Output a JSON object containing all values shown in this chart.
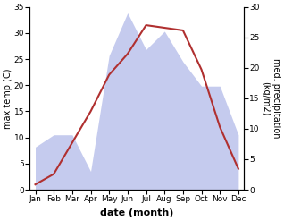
{
  "months": [
    "Jan",
    "Feb",
    "Mar",
    "Apr",
    "May",
    "Jun",
    "Jul",
    "Aug",
    "Sep",
    "Oct",
    "Nov",
    "Dec"
  ],
  "temp": [
    1,
    3,
    9,
    15,
    22,
    26,
    31.5,
    31,
    30.5,
    23,
    12,
    4
  ],
  "precip": [
    7,
    9,
    9,
    3,
    22,
    29,
    23,
    26,
    21,
    17,
    17,
    9
  ],
  "temp_color": "#b03030",
  "precip_fill_color": "#c5cbee",
  "bg_color": "#ffffff",
  "temp_linewidth": 1.5,
  "xlabel": "date (month)",
  "ylabel_left": "max temp (C)",
  "ylabel_right": "med. precipitation\n(kg/m2)",
  "ylim_left": [
    0,
    35
  ],
  "ylim_right": [
    0,
    30
  ],
  "yticks_left": [
    0,
    5,
    10,
    15,
    20,
    25,
    30,
    35
  ],
  "yticks_right": [
    0,
    5,
    10,
    15,
    20,
    25,
    30
  ],
  "xlabel_fontsize": 8,
  "ylabel_fontsize": 7,
  "tick_fontsize": 6.5
}
